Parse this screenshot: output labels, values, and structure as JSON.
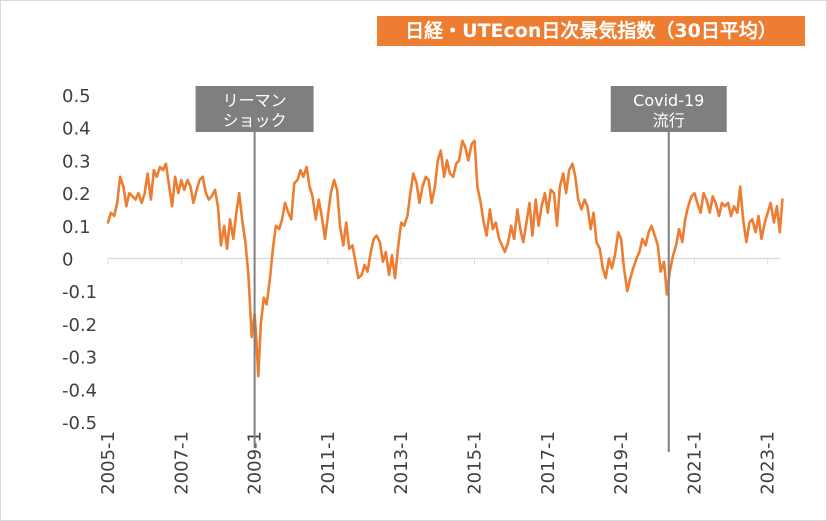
{
  "chart_data": {
    "type": "line",
    "title": "日経・UTEcon日次景気指数（30日平均）",
    "xlabel": "",
    "ylabel": "",
    "ylim": [
      -0.5,
      0.5
    ],
    "yticks": [
      "0.5",
      "0.4",
      "0.3",
      "0.2",
      "0.1",
      "0",
      "-0.1",
      "-0.2",
      "-0.3",
      "-0.4",
      "-0.5"
    ],
    "xticks": [
      "2005-1",
      "2007-1",
      "2009-1",
      "2011-1",
      "2013-1",
      "2015-1",
      "2017-1",
      "2019-1",
      "2021-1",
      "2023-1"
    ],
    "grid": false,
    "color": "#ed7d31",
    "annotations": [
      {
        "lines": [
          "リーマン",
          "ショック"
        ],
        "x": 2009.0
      },
      {
        "lines": [
          "Covid-19",
          "流行"
        ],
        "x": 2020.3
      }
    ],
    "series": [
      {
        "name": "",
        "points": [
          [
            2005.0,
            0.11
          ],
          [
            2005.08,
            0.14
          ],
          [
            2005.17,
            0.13
          ],
          [
            2005.25,
            0.17
          ],
          [
            2005.33,
            0.25
          ],
          [
            2005.42,
            0.22
          ],
          [
            2005.5,
            0.16
          ],
          [
            2005.58,
            0.2
          ],
          [
            2005.67,
            0.19
          ],
          [
            2005.75,
            0.18
          ],
          [
            2005.83,
            0.2
          ],
          [
            2005.92,
            0.17
          ],
          [
            2006.0,
            0.2
          ],
          [
            2006.08,
            0.26
          ],
          [
            2006.17,
            0.18
          ],
          [
            2006.25,
            0.27
          ],
          [
            2006.33,
            0.25
          ],
          [
            2006.42,
            0.28
          ],
          [
            2006.5,
            0.27
          ],
          [
            2006.58,
            0.29
          ],
          [
            2006.67,
            0.22
          ],
          [
            2006.75,
            0.16
          ],
          [
            2006.83,
            0.25
          ],
          [
            2006.92,
            0.2
          ],
          [
            2007.0,
            0.24
          ],
          [
            2007.08,
            0.21
          ],
          [
            2007.17,
            0.24
          ],
          [
            2007.25,
            0.22
          ],
          [
            2007.33,
            0.17
          ],
          [
            2007.42,
            0.21
          ],
          [
            2007.5,
            0.24
          ],
          [
            2007.58,
            0.25
          ],
          [
            2007.67,
            0.2
          ],
          [
            2007.75,
            0.18
          ],
          [
            2007.83,
            0.19
          ],
          [
            2007.92,
            0.21
          ],
          [
            2008.0,
            0.16
          ],
          [
            2008.08,
            0.04
          ],
          [
            2008.17,
            0.1
          ],
          [
            2008.25,
            0.03
          ],
          [
            2008.33,
            0.12
          ],
          [
            2008.42,
            0.06
          ],
          [
            2008.5,
            0.14
          ],
          [
            2008.58,
            0.2
          ],
          [
            2008.67,
            0.11
          ],
          [
            2008.75,
            0.05
          ],
          [
            2008.83,
            -0.05
          ],
          [
            2008.92,
            -0.24
          ],
          [
            2009.0,
            -0.17
          ],
          [
            2009.05,
            -0.25
          ],
          [
            2009.1,
            -0.36
          ],
          [
            2009.17,
            -0.2
          ],
          [
            2009.25,
            -0.12
          ],
          [
            2009.33,
            -0.14
          ],
          [
            2009.42,
            -0.06
          ],
          [
            2009.5,
            0.03
          ],
          [
            2009.58,
            0.1
          ],
          [
            2009.67,
            0.09
          ],
          [
            2009.75,
            0.12
          ],
          [
            2009.83,
            0.17
          ],
          [
            2009.92,
            0.14
          ],
          [
            2010.0,
            0.12
          ],
          [
            2010.08,
            0.23
          ],
          [
            2010.17,
            0.24
          ],
          [
            2010.25,
            0.27
          ],
          [
            2010.33,
            0.25
          ],
          [
            2010.42,
            0.28
          ],
          [
            2010.5,
            0.22
          ],
          [
            2010.58,
            0.19
          ],
          [
            2010.67,
            0.12
          ],
          [
            2010.75,
            0.18
          ],
          [
            2010.83,
            0.13
          ],
          [
            2010.92,
            0.06
          ],
          [
            2011.0,
            0.13
          ],
          [
            2011.08,
            0.2
          ],
          [
            2011.17,
            0.24
          ],
          [
            2011.25,
            0.21
          ],
          [
            2011.33,
            0.1
          ],
          [
            2011.42,
            0.04
          ],
          [
            2011.5,
            0.11
          ],
          [
            2011.58,
            0.03
          ],
          [
            2011.67,
            0.04
          ],
          [
            2011.75,
            -0.01
          ],
          [
            2011.83,
            -0.06
          ],
          [
            2011.92,
            -0.05
          ],
          [
            2012.0,
            -0.02
          ],
          [
            2012.08,
            -0.04
          ],
          [
            2012.17,
            0.02
          ],
          [
            2012.25,
            0.06
          ],
          [
            2012.33,
            0.07
          ],
          [
            2012.42,
            0.05
          ],
          [
            2012.5,
            -0.01
          ],
          [
            2012.58,
            0.02
          ],
          [
            2012.67,
            -0.05
          ],
          [
            2012.75,
            0.01
          ],
          [
            2012.83,
            -0.06
          ],
          [
            2012.92,
            0.04
          ],
          [
            2013.0,
            0.11
          ],
          [
            2013.08,
            0.1
          ],
          [
            2013.17,
            0.13
          ],
          [
            2013.25,
            0.2
          ],
          [
            2013.33,
            0.26
          ],
          [
            2013.42,
            0.23
          ],
          [
            2013.5,
            0.17
          ],
          [
            2013.58,
            0.22
          ],
          [
            2013.67,
            0.25
          ],
          [
            2013.75,
            0.24
          ],
          [
            2013.83,
            0.17
          ],
          [
            2013.92,
            0.22
          ],
          [
            2014.0,
            0.3
          ],
          [
            2014.08,
            0.33
          ],
          [
            2014.17,
            0.25
          ],
          [
            2014.25,
            0.3
          ],
          [
            2014.33,
            0.26
          ],
          [
            2014.42,
            0.25
          ],
          [
            2014.5,
            0.29
          ],
          [
            2014.58,
            0.3
          ],
          [
            2014.67,
            0.36
          ],
          [
            2014.75,
            0.34
          ],
          [
            2014.83,
            0.3
          ],
          [
            2014.92,
            0.35
          ],
          [
            2015.0,
            0.36
          ],
          [
            2015.08,
            0.22
          ],
          [
            2015.17,
            0.17
          ],
          [
            2015.25,
            0.11
          ],
          [
            2015.33,
            0.07
          ],
          [
            2015.42,
            0.15
          ],
          [
            2015.5,
            0.09
          ],
          [
            2015.58,
            0.11
          ],
          [
            2015.67,
            0.06
          ],
          [
            2015.75,
            0.04
          ],
          [
            2015.83,
            0.02
          ],
          [
            2015.92,
            0.05
          ],
          [
            2016.0,
            0.1
          ],
          [
            2016.08,
            0.06
          ],
          [
            2016.17,
            0.15
          ],
          [
            2016.25,
            0.09
          ],
          [
            2016.33,
            0.05
          ],
          [
            2016.42,
            0.11
          ],
          [
            2016.5,
            0.17
          ],
          [
            2016.58,
            0.07
          ],
          [
            2016.67,
            0.18
          ],
          [
            2016.75,
            0.1
          ],
          [
            2016.83,
            0.16
          ],
          [
            2016.92,
            0.2
          ],
          [
            2017.0,
            0.14
          ],
          [
            2017.08,
            0.21
          ],
          [
            2017.17,
            0.2
          ],
          [
            2017.25,
            0.1
          ],
          [
            2017.33,
            0.22
          ],
          [
            2017.42,
            0.26
          ],
          [
            2017.5,
            0.2
          ],
          [
            2017.58,
            0.27
          ],
          [
            2017.67,
            0.29
          ],
          [
            2017.75,
            0.25
          ],
          [
            2017.83,
            0.18
          ],
          [
            2017.92,
            0.15
          ],
          [
            2018.0,
            0.18
          ],
          [
            2018.08,
            0.16
          ],
          [
            2018.17,
            0.09
          ],
          [
            2018.25,
            0.14
          ],
          [
            2018.33,
            0.05
          ],
          [
            2018.42,
            0.03
          ],
          [
            2018.5,
            -0.03
          ],
          [
            2018.58,
            -0.06
          ],
          [
            2018.67,
            0.0
          ],
          [
            2018.75,
            -0.03
          ],
          [
            2018.83,
            0.01
          ],
          [
            2018.92,
            0.08
          ],
          [
            2019.0,
            0.06
          ],
          [
            2019.08,
            -0.03
          ],
          [
            2019.17,
            -0.1
          ],
          [
            2019.25,
            -0.06
          ],
          [
            2019.33,
            -0.03
          ],
          [
            2019.42,
            0.0
          ],
          [
            2019.5,
            0.02
          ],
          [
            2019.58,
            0.06
          ],
          [
            2019.67,
            0.04
          ],
          [
            2019.75,
            0.08
          ],
          [
            2019.83,
            0.1
          ],
          [
            2019.92,
            0.07
          ],
          [
            2020.0,
            0.04
          ],
          [
            2020.08,
            -0.04
          ],
          [
            2020.17,
            -0.01
          ],
          [
            2020.25,
            -0.11
          ],
          [
            2020.33,
            -0.04
          ],
          [
            2020.42,
            0.01
          ],
          [
            2020.5,
            0.04
          ],
          [
            2020.58,
            0.09
          ],
          [
            2020.67,
            0.05
          ],
          [
            2020.75,
            0.12
          ],
          [
            2020.83,
            0.16
          ],
          [
            2020.92,
            0.19
          ],
          [
            2021.0,
            0.2
          ],
          [
            2021.08,
            0.17
          ],
          [
            2021.17,
            0.14
          ],
          [
            2021.25,
            0.2
          ],
          [
            2021.33,
            0.18
          ],
          [
            2021.42,
            0.14
          ],
          [
            2021.5,
            0.19
          ],
          [
            2021.58,
            0.17
          ],
          [
            2021.67,
            0.13
          ],
          [
            2021.75,
            0.17
          ],
          [
            2021.83,
            0.16
          ],
          [
            2021.92,
            0.17
          ],
          [
            2022.0,
            0.13
          ],
          [
            2022.08,
            0.16
          ],
          [
            2022.17,
            0.14
          ],
          [
            2022.25,
            0.22
          ],
          [
            2022.33,
            0.12
          ],
          [
            2022.42,
            0.05
          ],
          [
            2022.5,
            0.11
          ],
          [
            2022.58,
            0.12
          ],
          [
            2022.67,
            0.08
          ],
          [
            2022.75,
            0.13
          ],
          [
            2022.83,
            0.06
          ],
          [
            2022.92,
            0.11
          ],
          [
            2023.0,
            0.14
          ],
          [
            2023.08,
            0.17
          ],
          [
            2023.17,
            0.11
          ],
          [
            2023.25,
            0.16
          ],
          [
            2023.33,
            0.08
          ],
          [
            2023.4,
            0.18
          ]
        ]
      }
    ]
  }
}
